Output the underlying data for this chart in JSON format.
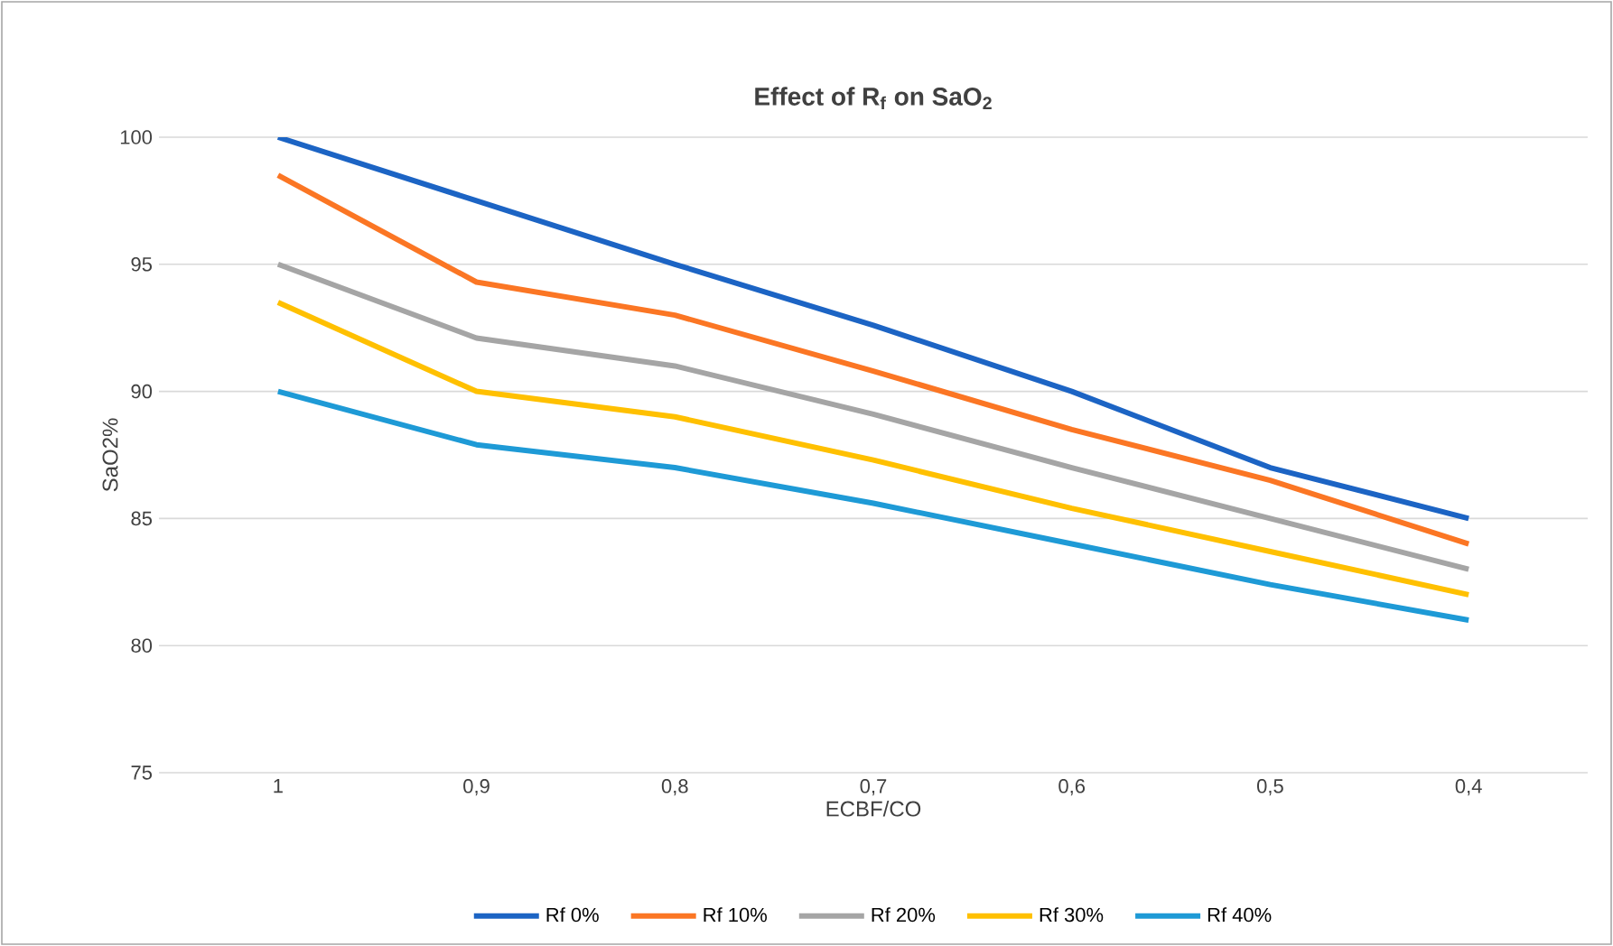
{
  "chart_data": {
    "type": "line",
    "title": "Effect of R$_{f}$ on SaO$_{2}$",
    "xlabel": "ECBF/CO",
    "ylabel": "SaO2%",
    "categories": [
      "1",
      "0,9",
      "0,8",
      "0,7",
      "0,6",
      "0,5",
      "0,4"
    ],
    "series": [
      {
        "name": "Rf 0%",
        "color": "#1c64c4",
        "values": [
          100,
          97.5,
          95,
          92.6,
          90,
          87,
          85
        ]
      },
      {
        "name": "Rf 10%",
        "color": "#fb7624",
        "values": [
          98.5,
          94.3,
          93,
          90.8,
          88.5,
          86.5,
          84
        ]
      },
      {
        "name": "Rf 20%",
        "color": "#a5a5a5",
        "values": [
          95,
          92.1,
          91,
          89.1,
          87,
          85,
          83
        ]
      },
      {
        "name": "Rf 30%",
        "color": "#ffc000",
        "values": [
          93.5,
          90,
          89,
          87.3,
          85.4,
          83.7,
          82
        ]
      },
      {
        "name": "Rf 40%",
        "color": "#1e9ad6",
        "values": [
          90,
          87.9,
          87,
          85.6,
          84,
          82.4,
          81
        ]
      }
    ],
    "ylim": [
      75,
      100
    ],
    "yticks": [
      75,
      80,
      85,
      90,
      95,
      100
    ],
    "grid": "y",
    "legend": "bottom",
    "marker": "none",
    "line_style": "solid"
  }
}
